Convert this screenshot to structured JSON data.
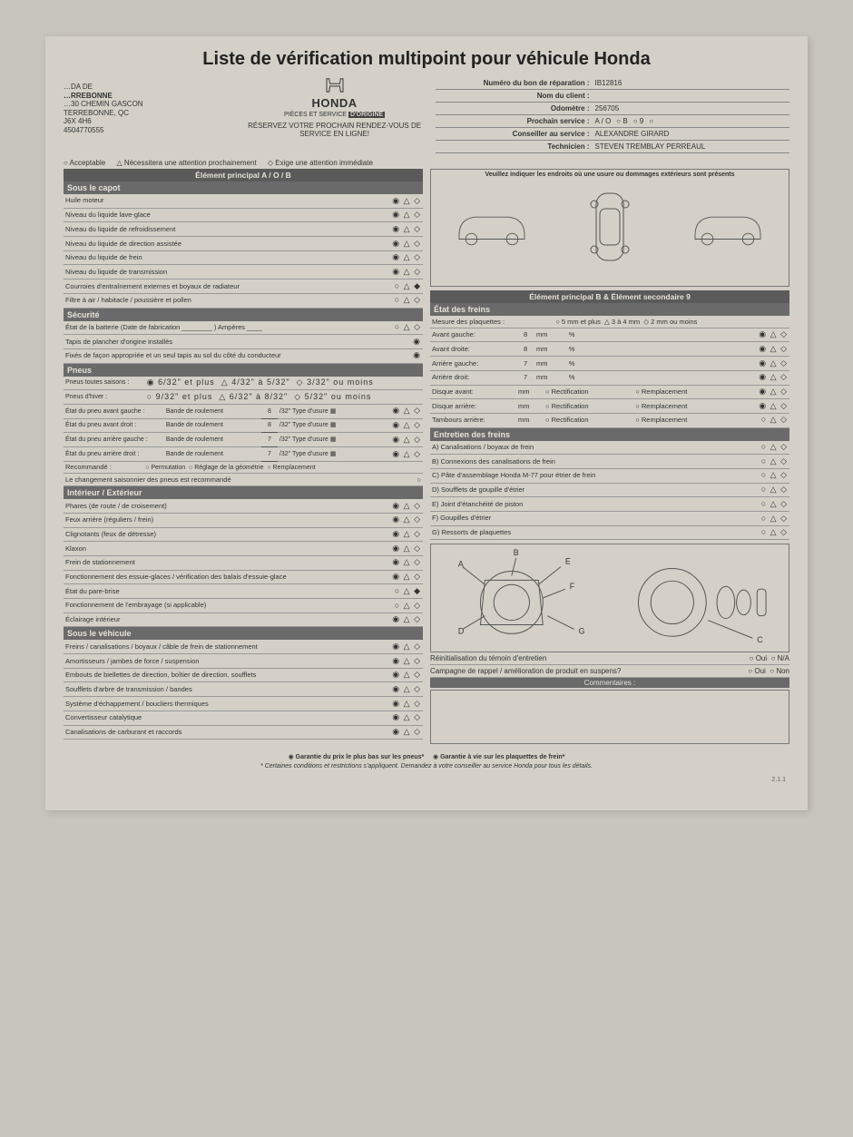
{
  "title": "Liste de vérification multipoint pour véhicule Honda",
  "dealer": {
    "l1": "…DA DE",
    "l2": "…RREBONNE",
    "l3": "…30 CHEMIN GASCON",
    "l4": "TERREBONNE, QC",
    "l5": "J6X 4H6",
    "l6": "4504770555"
  },
  "logo": {
    "brand": "HONDA",
    "origine_pre": "PIÈCES ET SERVICE",
    "origine": "D'ORIGINE",
    "reserve": "RÉSERVEZ VOTRE PROCHAIN RENDEZ-VOUS DE SERVICE EN LIGNE!"
  },
  "info": {
    "repair_lbl": "Numéro du bon de réparation :",
    "repair": "IB12816",
    "client_lbl": "Nom du client :",
    "client": "",
    "odo_lbl": "Odomètre :",
    "odo": "256705",
    "next_lbl": "Prochain service :",
    "next_a": "A / O",
    "next_b": "B",
    "next_9": "9",
    "advisor_lbl": "Conseiller au service :",
    "advisor": "ALEXANDRE GIRARD",
    "tech_lbl": "Technicien :",
    "tech": "STEVEN TREMBLAY PERREAUL"
  },
  "legend": {
    "a": "○ Acceptable",
    "b": "△ Nécessitera une attention prochainement",
    "c": "◇ Exige une attention immédiate"
  },
  "bar_main": "Élément principal A / O / B",
  "diagram_caption": "Veuillez indiquer les endroits où une usure ou dommages extérieurs sont présents",
  "bar_b9": "Élément principal B & Élément secondaire 9",
  "sections": {
    "capot": {
      "title": "Sous le capot",
      "rows": [
        {
          "t": "Huile moteur",
          "s": [
            1,
            0,
            0
          ]
        },
        {
          "t": "Niveau du liquide lave-glace",
          "s": [
            1,
            0,
            0
          ]
        },
        {
          "t": "Niveau du liquide de refroidissement",
          "s": [
            1,
            0,
            0
          ]
        },
        {
          "t": "Niveau du liquide de direction assistée",
          "s": [
            1,
            0,
            0
          ]
        },
        {
          "t": "Niveau du liquide de frein",
          "s": [
            1,
            0,
            0
          ]
        },
        {
          "t": "Niveau du liquide de transmission",
          "s": [
            1,
            0,
            0
          ]
        },
        {
          "t": "Courroies d'entraînement externes et boyaux de radiateur",
          "s": [
            0,
            0,
            1
          ]
        },
        {
          "t": "Filtre à air / habitacle / poussière et pollen",
          "s": [
            0,
            0,
            0
          ]
        }
      ]
    },
    "securite": {
      "title": "Sécurité",
      "rows": [
        {
          "t": "État de la batterie (Date de fabrication ________ ) Ampères ____",
          "s": [
            0,
            0,
            0
          ]
        },
        {
          "t": "Tapis de plancher d'origine installés",
          "s": [
            1,
            null,
            null
          ]
        },
        {
          "t": "Fixés de façon appropriée et un seul tapis au sol du côté du conducteur",
          "s": [
            1,
            null,
            null
          ]
        }
      ]
    },
    "pneus": {
      "title": "Pneus",
      "all_season_lbl": "Pneus toutes saisons :",
      "all_season_opts": [
        "6/32\" et plus",
        "4/32\" à 5/32\"",
        "3/32\" ou moins"
      ],
      "all_season_sel": 0,
      "winter_lbl": "Pneus d'hiver :",
      "winter_opts": [
        "9/32\" et plus",
        "6/32\" à 8/32\"",
        "5/32\" ou moins"
      ],
      "winter_sel": -1,
      "tire_rows": [
        {
          "t": "État du pneu avant gauche :",
          "b": "Bande de roulement",
          "v": "8",
          "u": "/32\" Type d'usure",
          "s": [
            1,
            0,
            0
          ]
        },
        {
          "t": "État du pneu avant droit :",
          "b": "Bande de roulement",
          "v": "8",
          "u": "/32\" Type d'usure",
          "s": [
            1,
            0,
            0
          ]
        },
        {
          "t": "État du pneu arrière gauche :",
          "b": "Bande de roulement",
          "v": "7",
          "u": "/32\" Type d'usure",
          "s": [
            1,
            0,
            0
          ]
        },
        {
          "t": "État du pneu arrière droit :",
          "b": "Bande de roulement",
          "v": "7",
          "u": "/32\" Type d'usure",
          "s": [
            1,
            0,
            0
          ]
        }
      ],
      "reco_lbl": "Recommandé :",
      "reco_opts": [
        "Permutation",
        "Réglage de la géométrie",
        "Remplacement"
      ],
      "season_note": "Le changement saisonnier des pneus est recommandé"
    },
    "intext": {
      "title": "Intérieur / Extérieur",
      "rows": [
        {
          "t": "Phares (de route / de croisement)",
          "s": [
            1,
            0,
            0
          ]
        },
        {
          "t": "Feux arrière (réguliers / frein)",
          "s": [
            1,
            0,
            0
          ]
        },
        {
          "t": "Clignotants (feux de détresse)",
          "s": [
            1,
            0,
            0
          ]
        },
        {
          "t": "Klaxon",
          "s": [
            1,
            0,
            0
          ]
        },
        {
          "t": "Frein de stationnement",
          "s": [
            1,
            0,
            0
          ]
        },
        {
          "t": "Fonctionnement des essuie-glaces / vérification des balais d'essuie-glace",
          "s": [
            1,
            0,
            0
          ]
        },
        {
          "t": "État du pare-brise",
          "s": [
            0,
            0,
            1
          ]
        },
        {
          "t": "Fonctionnement de l'embrayage (si applicable)",
          "s": [
            0,
            0,
            0
          ]
        },
        {
          "t": "Éclairage intérieur",
          "s": [
            1,
            0,
            0
          ]
        }
      ]
    },
    "sousveh": {
      "title": "Sous le véhicule",
      "rows": [
        {
          "t": "Freins / canalisations / boyaux / câble de frein de stationnement",
          "s": [
            1,
            0,
            0
          ]
        },
        {
          "t": "Amortisseurs / jambes de force / suspension",
          "s": [
            1,
            0,
            0
          ]
        },
        {
          "t": "Embouts de biellettes de direction, boîtier de direction, soufflets",
          "s": [
            1,
            0,
            0
          ]
        },
        {
          "t": "Soufflets d'arbre de transmission / bandes",
          "s": [
            1,
            0,
            0
          ]
        },
        {
          "t": "Système d'échappement / boucliers thermiques",
          "s": [
            1,
            0,
            0
          ]
        },
        {
          "t": "Convertisseur catalytique",
          "s": [
            1,
            0,
            0
          ]
        },
        {
          "t": "Canalisations de carburant et raccords",
          "s": [
            1,
            0,
            0
          ]
        }
      ]
    },
    "freins_etat": {
      "title": "État des freins",
      "pad_lbl": "Mesure des plaquettes :",
      "pad_opts": [
        "5 mm et plus",
        "3 à 4 mm",
        "2 mm ou moins"
      ],
      "rows": [
        {
          "t": "Avant gauche:",
          "v": "8",
          "mm": "mm",
          "p": "%",
          "s": [
            1,
            0,
            0
          ]
        },
        {
          "t": "Avant droite:",
          "v": "8",
          "mm": "mm",
          "p": "%",
          "s": [
            1,
            0,
            0
          ]
        },
        {
          "t": "Arrière gauche:",
          "v": "7",
          "mm": "mm",
          "p": "%",
          "s": [
            1,
            0,
            0
          ]
        },
        {
          "t": "Arrière droit:",
          "v": "7",
          "mm": "mm",
          "p": "%",
          "s": [
            1,
            0,
            0
          ]
        }
      ],
      "disc_rows": [
        {
          "t": "Disque avant:",
          "mm": "mm",
          "o1": "Rectification",
          "o2": "Remplacement",
          "s": [
            1,
            0,
            0
          ]
        },
        {
          "t": "Disque arrière:",
          "mm": "mm",
          "o1": "Rectification",
          "o2": "Remplacement",
          "s": [
            1,
            0,
            0
          ]
        },
        {
          "t": "Tambours arrière:",
          "mm": "mm",
          "o1": "Rectification",
          "o2": "Remplacement",
          "s": [
            0,
            0,
            0
          ]
        }
      ]
    },
    "freins_ent": {
      "title": "Entretien des freins",
      "rows": [
        {
          "t": "A) Canalisations / boyaux de frein",
          "s": [
            0,
            0,
            0
          ]
        },
        {
          "t": "B) Connexions des canalisations de frein",
          "s": [
            0,
            0,
            0
          ]
        },
        {
          "t": "C) Pâte d'assemblage Honda M-77 pour étrier de frein",
          "s": [
            0,
            0,
            0
          ]
        },
        {
          "t": "D) Soufflets de goupille d'étrier",
          "s": [
            0,
            0,
            0
          ]
        },
        {
          "t": "E) Joint d'étanchéité de piston",
          "s": [
            0,
            0,
            0
          ]
        },
        {
          "t": "F) Goupilles d'étrier",
          "s": [
            0,
            0,
            0
          ]
        },
        {
          "t": "G) Ressorts de plaquettes",
          "s": [
            0,
            0,
            0
          ]
        }
      ]
    }
  },
  "reset": {
    "r1": "Réinitialisation du témoin d'entretien",
    "r1a": "Oui",
    "r1b": "N/A",
    "r2": "Campagne de rappel / amélioration de produit en suspens?",
    "r2a": "Oui",
    "r2b": "Non"
  },
  "comments_lbl": "Commentaires :",
  "footer": {
    "g1": "Garantie du prix le plus bas sur les pneus*",
    "g2": "Garantie à vie sur les plaquettes de frein*",
    "small": "* Certaines conditions et restrictions s'appliquent. Demandez à votre conseiller au service Honda pour tous les détails.",
    "ver": "2.1.1"
  },
  "colors": {
    "bg": "#c8c5bd",
    "paper": "#d4d0c7",
    "bar": "#5a5a5a",
    "bartext": "#e6e3da",
    "line": "#999",
    "text": "#333"
  },
  "brake_labels": [
    "A",
    "B",
    "C",
    "D",
    "E",
    "F",
    "G"
  ]
}
